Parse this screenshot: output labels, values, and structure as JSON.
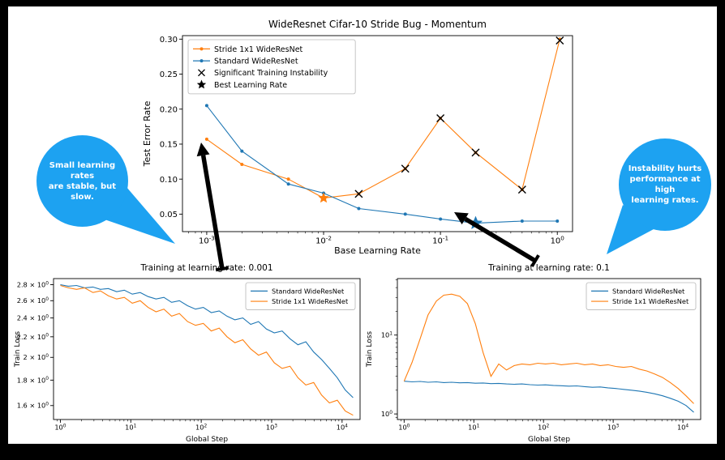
{
  "figure": {
    "background": "#ffffff",
    "frame_color": "#000000"
  },
  "colors": {
    "stride": "#ff7f0e",
    "standard": "#1f77b4",
    "bubble": "#1da2f1",
    "black": "#000000"
  },
  "callouts": {
    "left": {
      "text": "Small learning rates\nare stable, but slow."
    },
    "right": {
      "text": "Instability hurts\nperformance at high\nlearning rates."
    }
  },
  "chart_data": [
    {
      "id": "top",
      "type": "line",
      "title": "WideResnet Cifar-10 Stride Bug - Momentum",
      "xlabel": "Base Learning Rate",
      "ylabel": "Test Error Rate",
      "xscale": "log",
      "yscale": "linear",
      "xlim": [
        0.00062,
        1.35
      ],
      "ylim": [
        0.025,
        0.305
      ],
      "x_ticks": [
        {
          "v": 0.001,
          "m": "10",
          "e": "-3"
        },
        {
          "v": 0.01,
          "m": "10",
          "e": "-2"
        },
        {
          "v": 0.1,
          "m": "10",
          "e": "-1"
        },
        {
          "v": 1,
          "m": "10",
          "e": "0"
        }
      ],
      "y_ticks": [
        {
          "v": 0.05,
          "m": "0.05"
        },
        {
          "v": 0.1,
          "m": "0.10"
        },
        {
          "v": 0.15,
          "m": "0.15"
        },
        {
          "v": 0.2,
          "m": "0.20"
        },
        {
          "v": 0.25,
          "m": "0.25"
        },
        {
          "v": 0.3,
          "m": "0.30"
        }
      ],
      "series": [
        {
          "name": "Stride 1x1 WideResNet",
          "color": "stride",
          "marker": "dot",
          "x": [
            0.001,
            0.002,
            0.005,
            0.01,
            0.02,
            0.05,
            0.1,
            0.2,
            0.5,
            1.05
          ],
          "y": [
            0.157,
            0.121,
            0.1,
            0.073,
            0.079,
            0.115,
            0.187,
            0.138,
            0.085,
            0.3
          ]
        },
        {
          "name": "Standard WideResNet",
          "color": "standard",
          "marker": "dot",
          "x": [
            0.001,
            0.002,
            0.005,
            0.01,
            0.02,
            0.05,
            0.1,
            0.2,
            0.5,
            1.0
          ],
          "y": [
            0.205,
            0.14,
            0.093,
            0.08,
            0.058,
            0.05,
            0.043,
            0.037,
            0.04,
            0.04
          ]
        }
      ],
      "extra_markers": [
        {
          "name": "Significant Training Instability",
          "type": "x",
          "color": "black",
          "points": [
            {
              "x": 0.02,
              "y": 0.079
            },
            {
              "x": 0.05,
              "y": 0.115
            },
            {
              "x": 0.1,
              "y": 0.187
            },
            {
              "x": 0.2,
              "y": 0.138
            },
            {
              "x": 0.5,
              "y": 0.085
            },
            {
              "x": 1.05,
              "y": 0.298
            }
          ]
        },
        {
          "name": "Best Learning Rate",
          "type": "star",
          "color": "black",
          "points": [
            {
              "x": 0.01,
              "y": 0.073,
              "color": "stride",
              "r": 7
            },
            {
              "x": 0.2,
              "y": 0.037,
              "color": "standard",
              "r": 9
            }
          ]
        }
      ],
      "legend": {
        "position": "tl",
        "entries": [
          {
            "label": "Stride 1x1 WideResNet",
            "sample": "line-dot",
            "color": "stride"
          },
          {
            "label": "Standard WideResNet",
            "sample": "line-dot",
            "color": "standard"
          },
          {
            "label": "Significant Training Instability",
            "sample": "x",
            "color": "black"
          },
          {
            "label": "Best Learning Rate",
            "sample": "star",
            "color": "black"
          }
        ]
      }
    },
    {
      "id": "bl",
      "type": "line",
      "title": "Training at learning rate: 0.001",
      "xlabel": "Global Step",
      "ylabel": "Train Loss",
      "xscale": "log",
      "yscale": "log",
      "xlim": [
        0.8,
        18000
      ],
      "ylim": [
        1.5,
        2.88
      ],
      "x_ticks": [
        {
          "v": 1,
          "m": "10",
          "e": "0"
        },
        {
          "v": 10,
          "m": "10",
          "e": "1"
        },
        {
          "v": 100,
          "m": "10",
          "e": "2"
        },
        {
          "v": 1000,
          "m": "10",
          "e": "3"
        },
        {
          "v": 10000,
          "m": "10",
          "e": "4"
        }
      ],
      "y_ticks": [
        {
          "v": 1.6,
          "m": "1.6 × 10",
          "e": "0"
        },
        {
          "v": 1.8,
          "m": "1.8 × 10",
          "e": "0"
        },
        {
          "v": 2.0,
          "m": "2 × 10",
          "e": "0"
        },
        {
          "v": 2.2,
          "m": "2.2 × 10",
          "e": "0"
        },
        {
          "v": 2.4,
          "m": "2.4 × 10",
          "e": "0"
        },
        {
          "v": 2.6,
          "m": "2.6 × 10",
          "e": "0"
        },
        {
          "v": 2.8,
          "m": "2.8 × 10",
          "e": "0"
        }
      ],
      "series": [
        {
          "name": "Standard WideResNet",
          "color": "standard",
          "marker": null,
          "x": [
            1,
            1.3,
            1.7,
            2.2,
            2.9,
            3.7,
            4.8,
            6.3,
            8.1,
            10.5,
            13.6,
            17.6,
            22.8,
            29.5,
            38,
            49,
            64,
            83,
            107,
            139,
            180,
            232,
            300,
            389,
            503,
            651,
            842,
            1090,
            1410,
            1824,
            2360,
            3053,
            3950,
            5110,
            6612,
            8555,
            11070,
            14322
          ],
          "y": [
            2.8,
            2.78,
            2.79,
            2.76,
            2.77,
            2.74,
            2.75,
            2.71,
            2.73,
            2.68,
            2.7,
            2.65,
            2.62,
            2.64,
            2.58,
            2.6,
            2.54,
            2.5,
            2.52,
            2.46,
            2.48,
            2.42,
            2.38,
            2.4,
            2.33,
            2.36,
            2.28,
            2.24,
            2.26,
            2.18,
            2.12,
            2.15,
            2.05,
            1.98,
            1.9,
            1.82,
            1.72,
            1.66
          ]
        },
        {
          "name": "Stride 1x1 WideResNet",
          "color": "stride",
          "marker": null,
          "x": [
            1,
            1.3,
            1.7,
            2.2,
            2.9,
            3.7,
            4.8,
            6.3,
            8.1,
            10.5,
            13.6,
            17.6,
            22.8,
            29.5,
            38,
            49,
            64,
            83,
            107,
            139,
            180,
            232,
            300,
            389,
            503,
            651,
            842,
            1090,
            1410,
            1824,
            2360,
            3053,
            3950,
            5110,
            6612,
            8555,
            11070,
            14322
          ],
          "y": [
            2.79,
            2.76,
            2.74,
            2.76,
            2.7,
            2.72,
            2.66,
            2.62,
            2.64,
            2.57,
            2.6,
            2.52,
            2.47,
            2.5,
            2.42,
            2.45,
            2.36,
            2.32,
            2.34,
            2.26,
            2.29,
            2.2,
            2.14,
            2.17,
            2.08,
            2.02,
            2.05,
            1.95,
            1.9,
            1.92,
            1.82,
            1.76,
            1.78,
            1.68,
            1.62,
            1.64,
            1.56,
            1.53
          ]
        }
      ],
      "legend": {
        "position": "tr",
        "entries": [
          {
            "label": "Standard WideResNet",
            "sample": "line",
            "color": "standard"
          },
          {
            "label": "Stride 1x1 WideResNet",
            "sample": "line",
            "color": "stride"
          }
        ]
      }
    },
    {
      "id": "br",
      "type": "line",
      "title": "Training at learning rate: 0.1",
      "xlabel": "Global Step",
      "ylabel": "Train Loss",
      "xscale": "log",
      "yscale": "log",
      "y_minor": true,
      "xlim": [
        0.8,
        18000
      ],
      "ylim": [
        0.85,
        52
      ],
      "x_ticks": [
        {
          "v": 1,
          "m": "10",
          "e": "0"
        },
        {
          "v": 10,
          "m": "10",
          "e": "1"
        },
        {
          "v": 100,
          "m": "10",
          "e": "2"
        },
        {
          "v": 1000,
          "m": "10",
          "e": "3"
        },
        {
          "v": 10000,
          "m": "10",
          "e": "4"
        }
      ],
      "y_ticks": [
        {
          "v": 1,
          "m": "10",
          "e": "0"
        },
        {
          "v": 10,
          "m": "10",
          "e": "1"
        }
      ],
      "series": [
        {
          "name": "Standard WideResNet",
          "color": "standard",
          "marker": null,
          "x": [
            1,
            1.3,
            1.7,
            2.2,
            2.9,
            3.7,
            4.8,
            6.3,
            8.1,
            10.5,
            13.6,
            17.6,
            22.8,
            29.5,
            38,
            49,
            64,
            83,
            107,
            139,
            180,
            232,
            300,
            389,
            503,
            651,
            842,
            1090,
            1410,
            1824,
            2360,
            3053,
            3950,
            5110,
            6612,
            8555,
            11070,
            14322
          ],
          "y": [
            2.6,
            2.55,
            2.58,
            2.52,
            2.55,
            2.5,
            2.52,
            2.48,
            2.5,
            2.45,
            2.47,
            2.42,
            2.44,
            2.4,
            2.38,
            2.4,
            2.35,
            2.32,
            2.34,
            2.3,
            2.28,
            2.25,
            2.27,
            2.22,
            2.18,
            2.2,
            2.14,
            2.1,
            2.05,
            2.0,
            1.95,
            1.88,
            1.8,
            1.7,
            1.58,
            1.45,
            1.28,
            1.05
          ]
        },
        {
          "name": "Stride 1x1 WideResNet",
          "color": "stride",
          "marker": null,
          "x": [
            1,
            1.3,
            1.7,
            2.2,
            2.9,
            3.7,
            4.8,
            6.3,
            8.1,
            10.5,
            13.6,
            17.6,
            22.8,
            29.5,
            38,
            49,
            64,
            83,
            107,
            139,
            180,
            232,
            300,
            389,
            503,
            651,
            842,
            1090,
            1410,
            1824,
            2360,
            3053,
            3950,
            5110,
            6612,
            8555,
            11070,
            14322
          ],
          "y": [
            2.6,
            4.5,
            9,
            18,
            27,
            32,
            33,
            31,
            25,
            14,
            6,
            3.0,
            4.3,
            3.6,
            4.1,
            4.3,
            4.2,
            4.4,
            4.3,
            4.4,
            4.2,
            4.3,
            4.4,
            4.2,
            4.3,
            4.1,
            4.2,
            4.0,
            3.9,
            4.0,
            3.7,
            3.5,
            3.2,
            2.9,
            2.5,
            2.1,
            1.7,
            1.35
          ]
        }
      ],
      "legend": {
        "position": "tr",
        "entries": [
          {
            "label": "Standard WideResNet",
            "sample": "line",
            "color": "standard"
          },
          {
            "label": "Stride 1x1 WideResNet",
            "sample": "line",
            "color": "stride"
          }
        ]
      }
    }
  ]
}
